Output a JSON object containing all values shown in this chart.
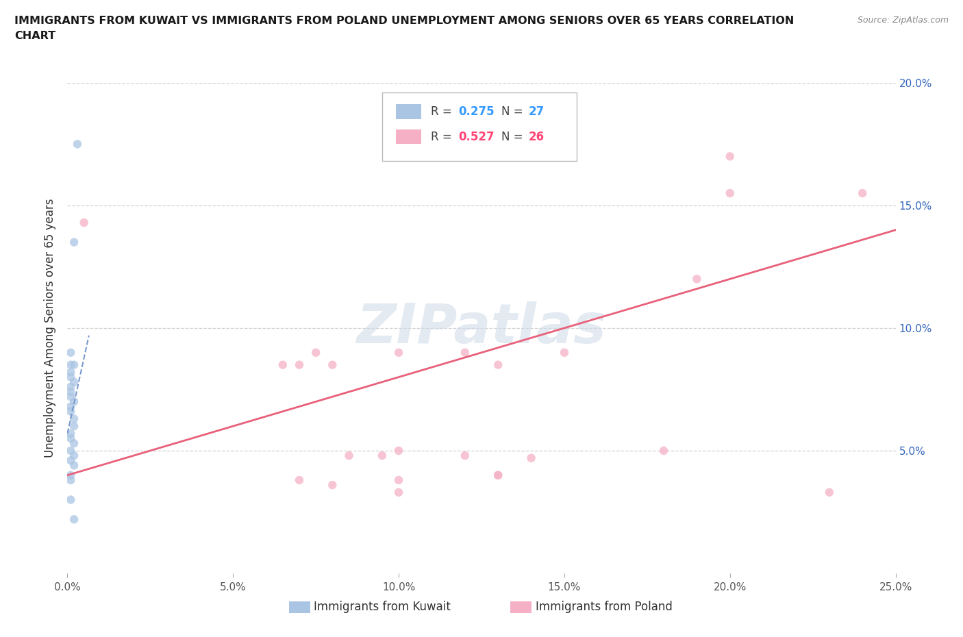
{
  "title_line1": "IMMIGRANTS FROM KUWAIT VS IMMIGRANTS FROM POLAND UNEMPLOYMENT AMONG SENIORS OVER 65 YEARS CORRELATION",
  "title_line2": "CHART",
  "source": "Source: ZipAtlas.com",
  "ylabel": "Unemployment Among Seniors over 65 years",
  "xlim": [
    0.0,
    0.25
  ],
  "ylim": [
    0.0,
    0.2
  ],
  "xticks": [
    0.0,
    0.05,
    0.1,
    0.15,
    0.2,
    0.25
  ],
  "xtick_labels": [
    "0.0%",
    "5.0%",
    "10.0%",
    "15.0%",
    "20.0%",
    "25.0%"
  ],
  "yticks_right": [
    0.05,
    0.1,
    0.15,
    0.2
  ],
  "ytick_labels_right": [
    "5.0%",
    "10.0%",
    "15.0%",
    "20.0%"
  ],
  "background_color": "#ffffff",
  "grid_color": "#cccccc",
  "kuwait_fill_color": "#aac5e3",
  "poland_fill_color": "#f5b0c5",
  "kuwait_trend_color": "#7799cc",
  "poland_trend_color": "#e8607a",
  "watermark_color": "#cdd9e8",
  "watermark_text": "ZIPatlas",
  "kuwait_x": [
    0.003,
    0.002,
    0.001,
    0.001,
    0.002,
    0.001,
    0.001,
    0.002,
    0.001,
    0.001,
    0.001,
    0.002,
    0.001,
    0.001,
    0.002,
    0.002,
    0.001,
    0.001,
    0.002,
    0.001,
    0.002,
    0.001,
    0.002,
    0.001,
    0.001,
    0.001,
    0.002
  ],
  "kuwait_y": [
    0.175,
    0.135,
    0.09,
    0.085,
    0.085,
    0.082,
    0.08,
    0.078,
    0.076,
    0.074,
    0.072,
    0.07,
    0.068,
    0.066,
    0.063,
    0.06,
    0.057,
    0.055,
    0.053,
    0.05,
    0.048,
    0.046,
    0.044,
    0.04,
    0.038,
    0.03,
    0.022
  ],
  "poland_x": [
    0.005,
    0.065,
    0.075,
    0.085,
    0.095,
    0.1,
    0.1,
    0.07,
    0.07,
    0.08,
    0.08,
    0.1,
    0.12,
    0.13,
    0.13,
    0.14,
    0.15,
    0.18,
    0.19,
    0.2,
    0.2,
    0.23,
    0.24,
    0.12,
    0.1,
    0.13
  ],
  "poland_y": [
    0.143,
    0.085,
    0.09,
    0.048,
    0.048,
    0.09,
    0.05,
    0.085,
    0.038,
    0.085,
    0.036,
    0.038,
    0.09,
    0.085,
    0.04,
    0.047,
    0.09,
    0.05,
    0.12,
    0.17,
    0.155,
    0.033,
    0.155,
    0.048,
    0.033,
    0.04
  ],
  "kuwait_trend_x": [
    0.0,
    0.0065
  ],
  "kuwait_trend_y": [
    0.057,
    0.097
  ],
  "poland_trend_x": [
    0.0,
    0.25
  ],
  "poland_trend_y": [
    0.04,
    0.14
  ],
  "legend_r_kuwait": "0.275",
  "legend_n_kuwait": "27",
  "legend_r_poland": "0.527",
  "legend_n_poland": "26",
  "legend_color_r_kuwait": "#3399ff",
  "legend_color_n_kuwait": "#3399ff",
  "legend_color_r_poland": "#ff4477",
  "legend_color_n_poland": "#ff4477",
  "scatter_size": 80,
  "scatter_alpha": 0.75
}
